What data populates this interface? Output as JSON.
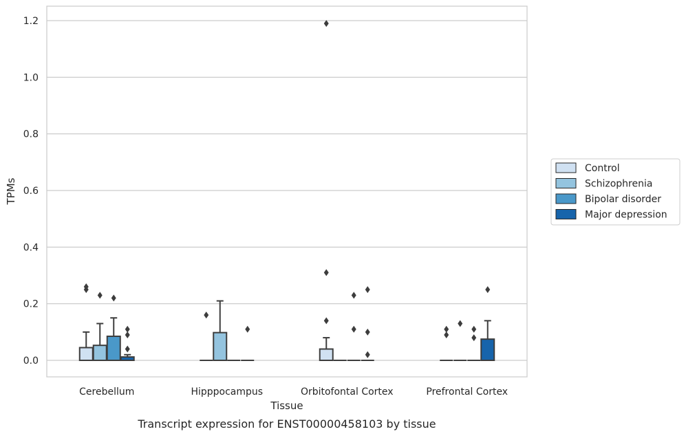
{
  "caption": "Transcript expression for ENST00000458103 by tissue",
  "chart_data": {
    "type": "box",
    "xlabel": "Tissue",
    "ylabel": "TPMs",
    "ylim": [
      -0.06,
      1.25
    ],
    "yticks": [
      0.0,
      0.2,
      0.4,
      0.6,
      0.8,
      1.0,
      1.2
    ],
    "ytick_labels": [
      "0.0",
      "0.2",
      "0.4",
      "0.6",
      "0.8",
      "1.0",
      "1.2"
    ],
    "grid": "horizontal",
    "legend_position": "right",
    "categories": [
      "Cerebellum",
      "Hipppocampus",
      "Orbitofontal Cortex",
      "Prefrontal Cortex"
    ],
    "series": [
      {
        "name": "Control",
        "color": "#d0e1f2",
        "boxes": [
          {
            "q1": 0.0,
            "median": 0.0,
            "q3": 0.045,
            "whisker_low": 0.0,
            "whisker_high": 0.1,
            "outliers": [
              0.25,
              0.26
            ]
          },
          {
            "q1": 0.0,
            "median": 0.0,
            "q3": 0.0,
            "whisker_low": 0.0,
            "whisker_high": 0.0,
            "outliers": [
              0.16
            ]
          },
          {
            "q1": 0.0,
            "median": 0.0,
            "q3": 0.04,
            "whisker_low": 0.0,
            "whisker_high": 0.08,
            "outliers": [
              0.14,
              0.31,
              1.19
            ]
          },
          {
            "q1": 0.0,
            "median": 0.0,
            "q3": 0.0,
            "whisker_low": 0.0,
            "whisker_high": 0.0,
            "outliers": [
              0.09,
              0.11
            ]
          }
        ]
      },
      {
        "name": "Schizophrenia",
        "color": "#94c4df",
        "boxes": [
          {
            "q1": 0.0,
            "median": 0.0,
            "q3": 0.053,
            "whisker_low": 0.0,
            "whisker_high": 0.13,
            "outliers": [
              0.23
            ]
          },
          {
            "q1": 0.0,
            "median": 0.0,
            "q3": 0.098,
            "whisker_low": 0.0,
            "whisker_high": 0.21,
            "outliers": []
          },
          {
            "q1": 0.0,
            "median": 0.0,
            "q3": 0.0,
            "whisker_low": 0.0,
            "whisker_high": 0.0,
            "outliers": []
          },
          {
            "q1": 0.0,
            "median": 0.0,
            "q3": 0.0,
            "whisker_low": 0.0,
            "whisker_high": 0.0,
            "outliers": [
              0.13
            ]
          }
        ]
      },
      {
        "name": "Bipolar disorder",
        "color": "#4a98c9",
        "boxes": [
          {
            "q1": 0.0,
            "median": 0.0,
            "q3": 0.085,
            "whisker_low": 0.0,
            "whisker_high": 0.15,
            "outliers": [
              0.22
            ]
          },
          {
            "q1": 0.0,
            "median": 0.0,
            "q3": 0.0,
            "whisker_low": 0.0,
            "whisker_high": 0.0,
            "outliers": []
          },
          {
            "q1": 0.0,
            "median": 0.0,
            "q3": 0.0,
            "whisker_low": 0.0,
            "whisker_high": 0.0,
            "outliers": [
              0.11,
              0.23
            ]
          },
          {
            "q1": 0.0,
            "median": 0.0,
            "q3": 0.0,
            "whisker_low": 0.0,
            "whisker_high": 0.0,
            "outliers": [
              0.08,
              0.11
            ]
          }
        ]
      },
      {
        "name": "Major depression",
        "color": "#1764ab",
        "boxes": [
          {
            "q1": 0.0,
            "median": 0.0,
            "q3": 0.012,
            "whisker_low": 0.0,
            "whisker_high": 0.02,
            "outliers": [
              0.04,
              0.09,
              0.11
            ]
          },
          {
            "q1": 0.0,
            "median": 0.0,
            "q3": 0.0,
            "whisker_low": 0.0,
            "whisker_high": 0.0,
            "outliers": [
              0.11
            ]
          },
          {
            "q1": 0.0,
            "median": 0.0,
            "q3": 0.0,
            "whisker_low": 0.0,
            "whisker_high": 0.0,
            "outliers": [
              0.02,
              0.1,
              0.25
            ]
          },
          {
            "q1": 0.0,
            "median": 0.0,
            "q3": 0.075,
            "whisker_low": 0.0,
            "whisker_high": 0.14,
            "outliers": [
              0.25
            ]
          }
        ]
      }
    ]
  }
}
